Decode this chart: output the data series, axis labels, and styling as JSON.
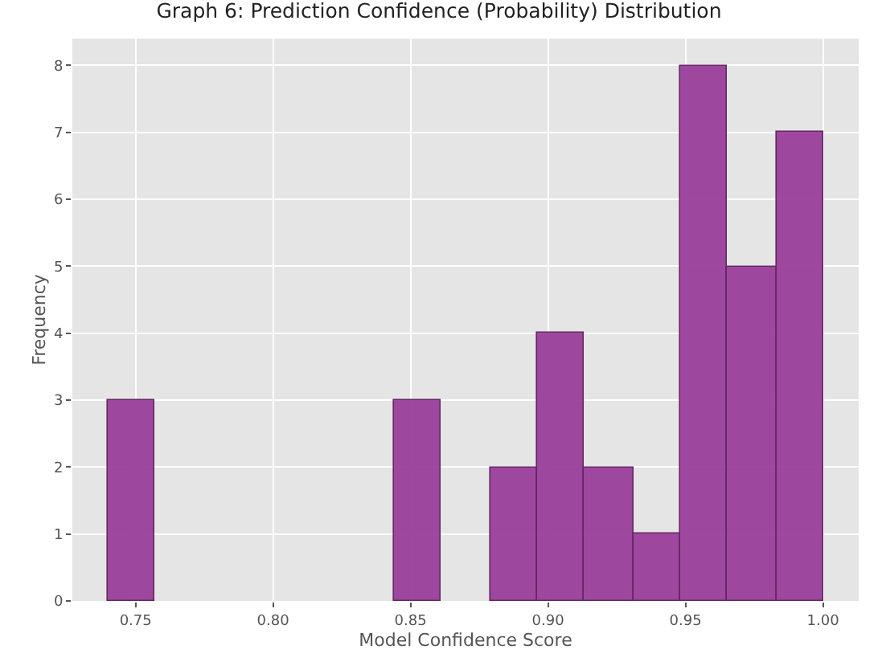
{
  "chart_data": {
    "type": "histogram",
    "title": "Graph 6: Prediction Confidence (Probability) Distribution",
    "xlabel": "Model Confidence Score",
    "ylabel": "Frequency",
    "bins": [
      0.74,
      0.757,
      0.844,
      0.861,
      0.879,
      0.896,
      0.913,
      0.931,
      0.948,
      0.965,
      0.983,
      1.0
    ],
    "values": [
      3,
      0,
      3,
      0,
      2,
      4,
      2,
      1,
      8,
      5,
      7
    ],
    "color": "#9b3f9b",
    "xlim": [
      0.727,
      1.013
    ],
    "xticks": [
      {
        "value": 0.75,
        "label": "0.75"
      },
      {
        "value": 0.8,
        "label": "0.80"
      },
      {
        "value": 0.85,
        "label": "0.85"
      },
      {
        "value": 0.9,
        "label": "0.90"
      },
      {
        "value": 0.95,
        "label": "0.95"
      },
      {
        "value": 1.0,
        "label": "1.00"
      }
    ],
    "ylim": [
      0,
      8.4
    ],
    "yticks": [
      0,
      1,
      2,
      3,
      4,
      5,
      6,
      7,
      8
    ],
    "grid": true
  }
}
